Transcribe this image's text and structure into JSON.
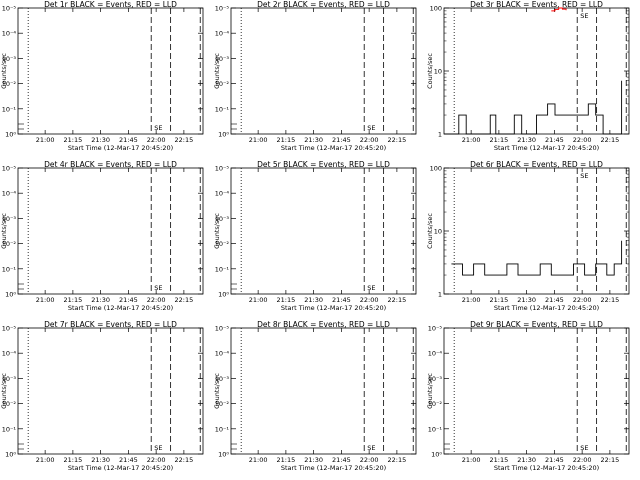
{
  "chart_data": [
    {
      "type": "line",
      "title": "Det 1r BLACK = Events, RED = LLD",
      "ylabel": "Counts/sec",
      "xlabel": "Start Time (12-Mar-17 20:45:20)",
      "xticks": [
        "21:00",
        "21:15",
        "21:30",
        "21:45",
        "22:00",
        "22:15"
      ],
      "yscale": "log",
      "yticks": [
        "10⁰",
        "10⁻¹",
        "10⁻²",
        "10⁻³",
        "10⁻⁴",
        "10⁻⁵"
      ],
      "annotation": "SE",
      "series": [
        {
          "color": "#000000",
          "values": []
        },
        {
          "color": "#ff0000",
          "values": []
        }
      ]
    },
    {
      "type": "line",
      "title": "Det 2r BLACK = Events, RED = LLD",
      "ylabel": "Counts/sec",
      "xlabel": "Start Time (12-Mar-17 20:45:20)",
      "xticks": [
        "21:00",
        "21:15",
        "21:30",
        "21:45",
        "22:00",
        "22:15"
      ],
      "yscale": "log",
      "yticks": [
        "10⁰",
        "10⁻¹",
        "10⁻²",
        "10⁻³",
        "10⁻⁴",
        "10⁻⁵"
      ],
      "annotation": "SE",
      "series": [
        {
          "color": "#000000",
          "values": []
        },
        {
          "color": "#ff0000",
          "values": []
        }
      ]
    },
    {
      "type": "line",
      "title": "Det 3r BLACK = Events, RED = LLD",
      "ylabel": "Counts/sec",
      "xlabel": "Start Time (12-Mar-17 20:45:20)",
      "xticks": [
        "21:00",
        "21:15",
        "21:30",
        "21:45",
        "22:00",
        "22:15"
      ],
      "yscale": "log",
      "yticks": [
        "100",
        "10",
        "1"
      ],
      "annotation": "SE",
      "series": [
        {
          "color": "#000000",
          "x_minutes": [
            0,
            5,
            8,
            12,
            15,
            20,
            25,
            28,
            33,
            38,
            42,
            46,
            50,
            53,
            56,
            60,
            65,
            72,
            78,
            82,
            86,
            90,
            94,
            96
          ],
          "values": [
            1,
            1,
            2,
            1,
            1,
            1,
            2,
            1,
            1,
            2,
            1,
            1,
            2,
            2,
            3,
            2,
            2,
            2,
            3,
            2,
            1,
            1,
            1,
            7
          ]
        },
        {
          "color": "#ff0000",
          "x_minutes": [
            58,
            60,
            62,
            64,
            66
          ],
          "values": [
            90,
            95,
            100,
            96,
            92
          ]
        }
      ]
    },
    {
      "type": "line",
      "title": "Det 4r BLACK = Events, RED = LLD",
      "ylabel": "Counts/sec",
      "xlabel": "Start Time (12-Mar-17 20:45:20)",
      "xticks": [
        "21:00",
        "21:15",
        "21:30",
        "21:45",
        "22:00",
        "22:15"
      ],
      "yscale": "log",
      "yticks": [
        "10⁰",
        "10⁻¹",
        "10⁻²",
        "10⁻³",
        "10⁻⁴",
        "10⁻⁵"
      ],
      "annotation": "SE",
      "series": [
        {
          "color": "#000000",
          "values": []
        },
        {
          "color": "#ff0000",
          "values": []
        }
      ]
    },
    {
      "type": "line",
      "title": "Det 5r BLACK = Events, RED = LLD",
      "ylabel": "Counts/sec",
      "xlabel": "Start Time (12-Mar-17 20:45:20)",
      "xticks": [
        "21:00",
        "21:15",
        "21:30",
        "21:45",
        "22:00",
        "22:15"
      ],
      "yscale": "log",
      "yticks": [
        "10⁰",
        "10⁻¹",
        "10⁻²",
        "10⁻³",
        "10⁻⁴",
        "10⁻⁵"
      ],
      "annotation": "SE",
      "series": [
        {
          "color": "#000000",
          "values": []
        },
        {
          "color": "#ff0000",
          "values": []
        }
      ]
    },
    {
      "type": "line",
      "title": "Det 6r BLACK = Events, RED = LLD",
      "ylabel": "Counts/sec",
      "xlabel": "Start Time (12-Mar-17 20:45:20)",
      "xticks": [
        "21:00",
        "21:15",
        "21:30",
        "21:45",
        "22:00",
        "22:15"
      ],
      "yscale": "log",
      "yticks": [
        "100",
        "10",
        "1"
      ],
      "annotation": "SE",
      "series": [
        {
          "color": "#000000",
          "x_minutes": [
            4,
            10,
            16,
            22,
            28,
            34,
            40,
            46,
            52,
            58,
            64,
            70,
            76,
            82,
            88,
            92,
            96
          ],
          "values": [
            3,
            2,
            3,
            2,
            2,
            3,
            2,
            2,
            3,
            2,
            2,
            3,
            2,
            3,
            2,
            3,
            7
          ]
        },
        {
          "color": "#ff0000",
          "values": []
        }
      ]
    },
    {
      "type": "line",
      "title": "Det 7r BLACK = Events, RED = LLD",
      "ylabel": "Counts/sec",
      "xlabel": "Start Time (12-Mar-17 20:45:20)",
      "xticks": [
        "21:00",
        "21:15",
        "21:30",
        "21:45",
        "22:00",
        "22:15"
      ],
      "yscale": "log",
      "yticks": [
        "10⁰",
        "10⁻¹",
        "10⁻²",
        "10⁻³",
        "10⁻⁴",
        "10⁻⁵"
      ],
      "annotation": "SE",
      "series": [
        {
          "color": "#000000",
          "values": []
        },
        {
          "color": "#ff0000",
          "values": []
        }
      ]
    },
    {
      "type": "line",
      "title": "Det 8r BLACK = Events, RED = LLD",
      "ylabel": "Counts/sec",
      "xlabel": "Start Time (12-Mar-17 20:45:20)",
      "xticks": [
        "21:00",
        "21:15",
        "21:30",
        "21:45",
        "22:00",
        "22:15"
      ],
      "yscale": "log",
      "yticks": [
        "10⁰",
        "10⁻¹",
        "10⁻²",
        "10⁻³",
        "10⁻⁴",
        "10⁻⁵"
      ],
      "annotation": "SE",
      "series": [
        {
          "color": "#000000",
          "values": []
        },
        {
          "color": "#ff0000",
          "values": []
        }
      ]
    },
    {
      "type": "line",
      "title": "Det 9r BLACK = Events, RED = LLD",
      "ylabel": "Counts/sec",
      "xlabel": "Start Time (12-Mar-17 20:45:20)",
      "xticks": [
        "21:00",
        "21:15",
        "21:30",
        "21:45",
        "22:00",
        "22:15"
      ],
      "yscale": "log",
      "yticks": [
        "10⁰",
        "10⁻¹",
        "10⁻²",
        "10⁻³",
        "10⁻⁴",
        "10⁻⁵"
      ],
      "annotation": "SE",
      "series": [
        {
          "color": "#000000",
          "values": []
        },
        {
          "color": "#ff0000",
          "values": []
        }
      ]
    }
  ]
}
